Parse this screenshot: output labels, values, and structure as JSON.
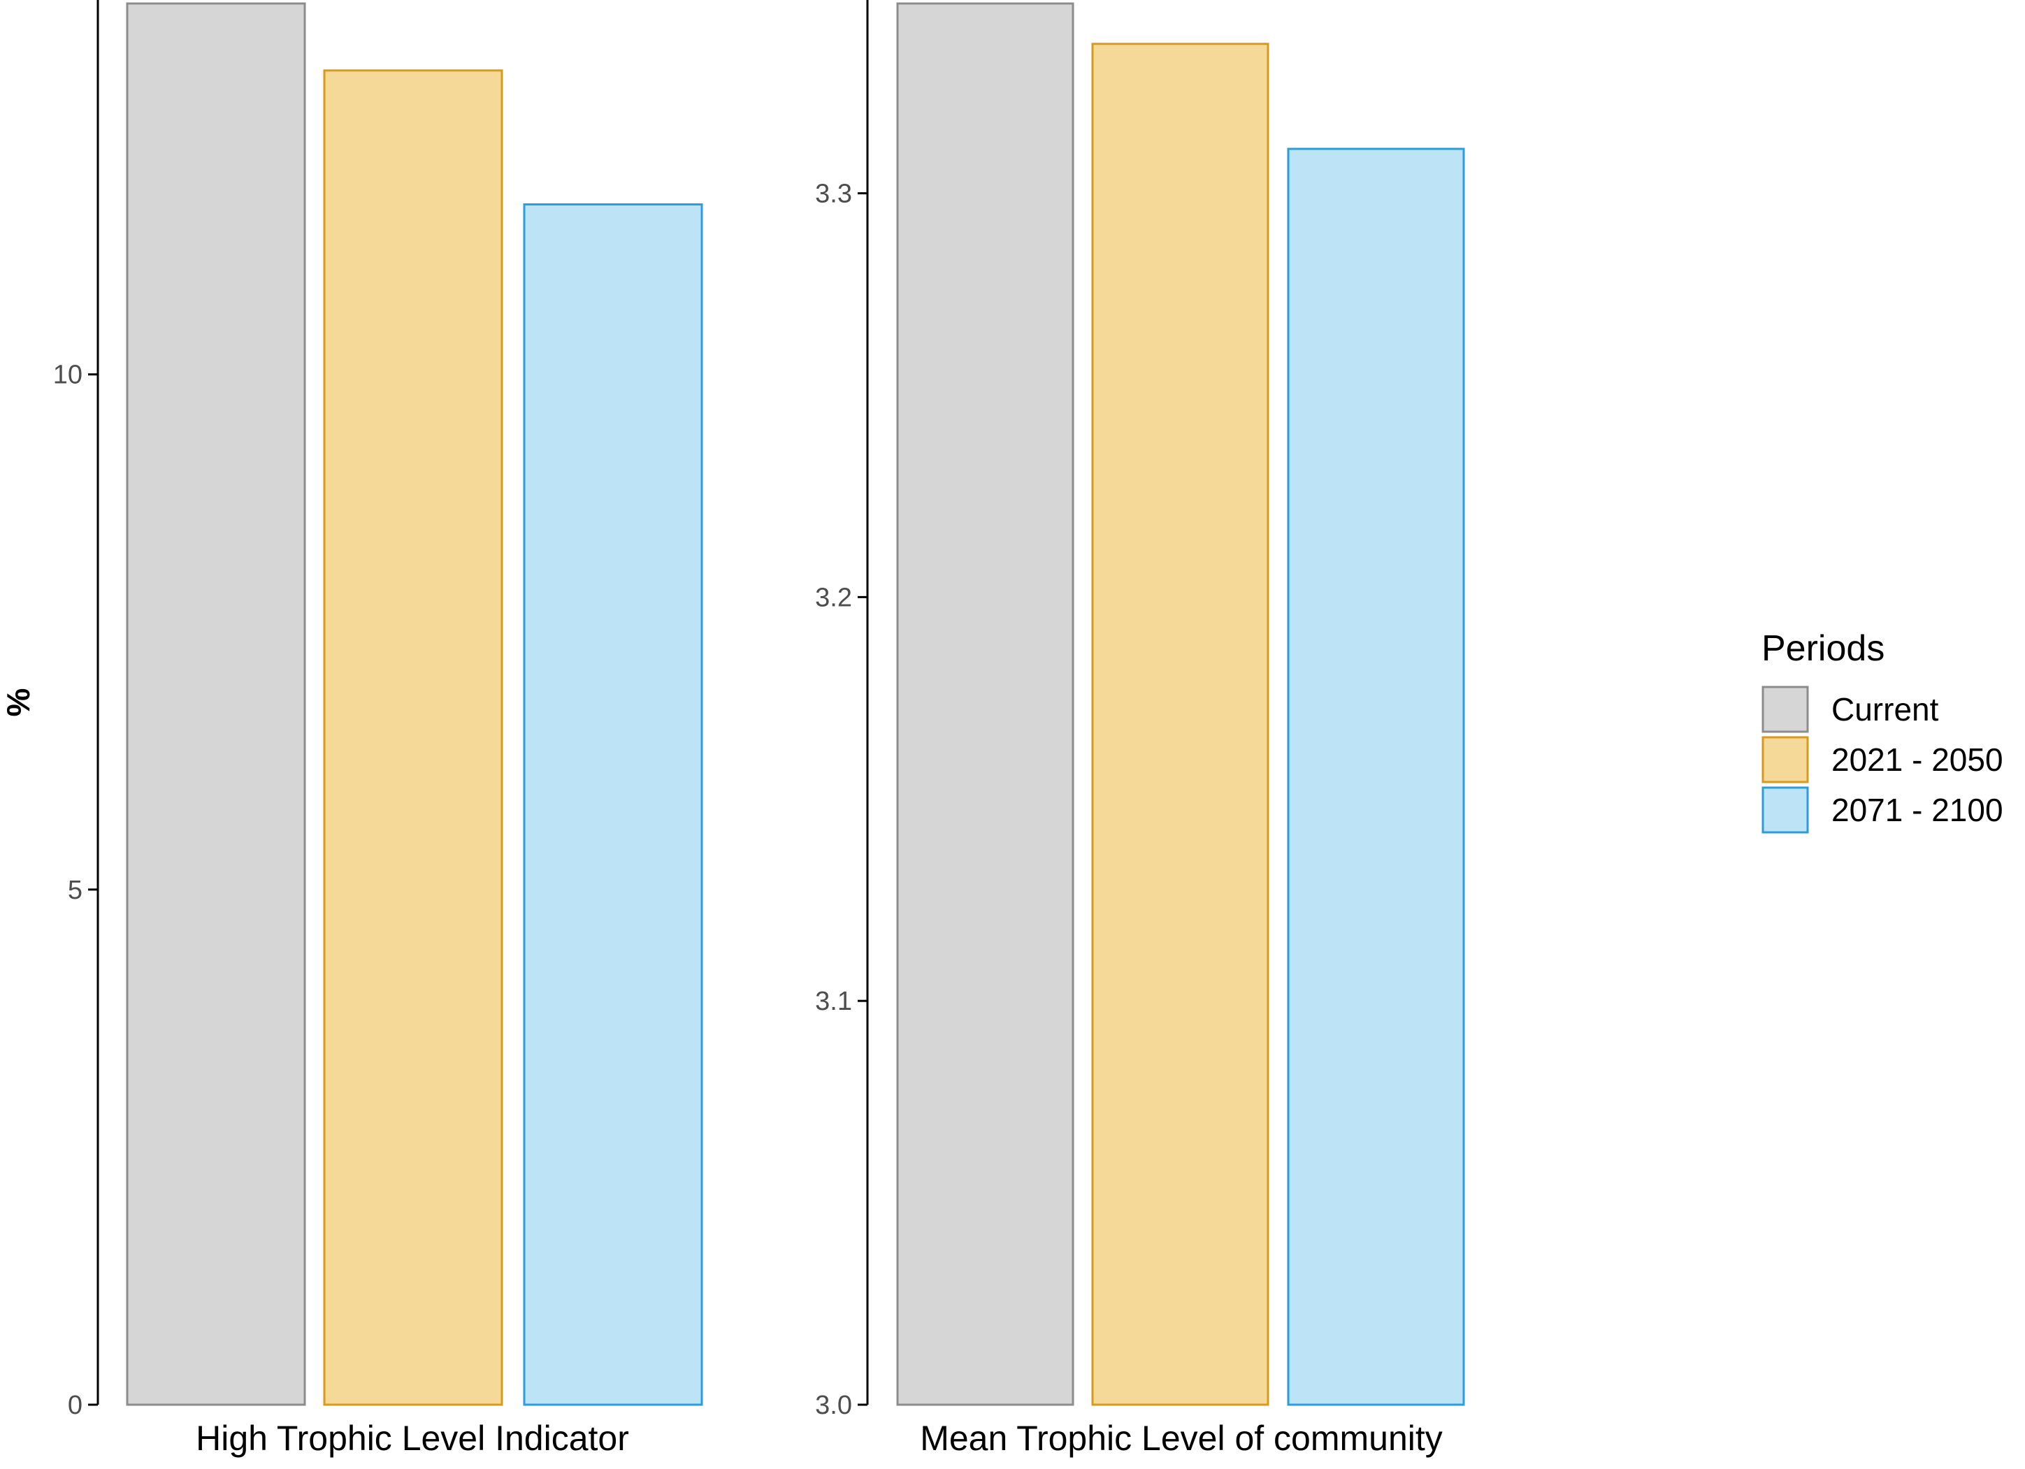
{
  "chart_data": [
    {
      "type": "bar",
      "title": "",
      "xlabel": "High Trophic Level Indicator",
      "ylabel": "%",
      "ylim": [
        0,
        13.6
      ],
      "yticks": [
        0,
        5,
        10
      ],
      "ytick_labels": [
        "0",
        "5",
        "10"
      ],
      "grid": false,
      "categories": [
        "Current",
        "2021 - 2050",
        "2071 - 2100"
      ],
      "values": [
        13.6,
        12.95,
        11.65
      ]
    },
    {
      "type": "bar",
      "title": "",
      "xlabel": "Mean Trophic Level of community",
      "ylabel": "",
      "ylim": [
        3.0,
        3.347
      ],
      "yticks": [
        3.0,
        3.1,
        3.2,
        3.3
      ],
      "ytick_labels": [
        "3.0",
        "3.1",
        "3.2",
        "3.3"
      ],
      "grid": false,
      "categories": [
        "Current",
        "2021 - 2050",
        "2071 - 2100"
      ],
      "values": [
        3.347,
        3.337,
        3.311
      ]
    }
  ],
  "legend": {
    "title": "Periods",
    "placement": "right",
    "items": [
      {
        "label": "Current",
        "fill": "#d6d6d6",
        "stroke": "#8c8c8c"
      },
      {
        "label": "2021 - 2050",
        "fill": "#f4d998",
        "stroke": "#d99a1c"
      },
      {
        "label": "2071 - 2100",
        "fill": "#bde3f7",
        "stroke": "#2a9ddd"
      }
    ]
  },
  "colors": {
    "axis": "#000000",
    "tick_text": "#4d4d4d"
  }
}
